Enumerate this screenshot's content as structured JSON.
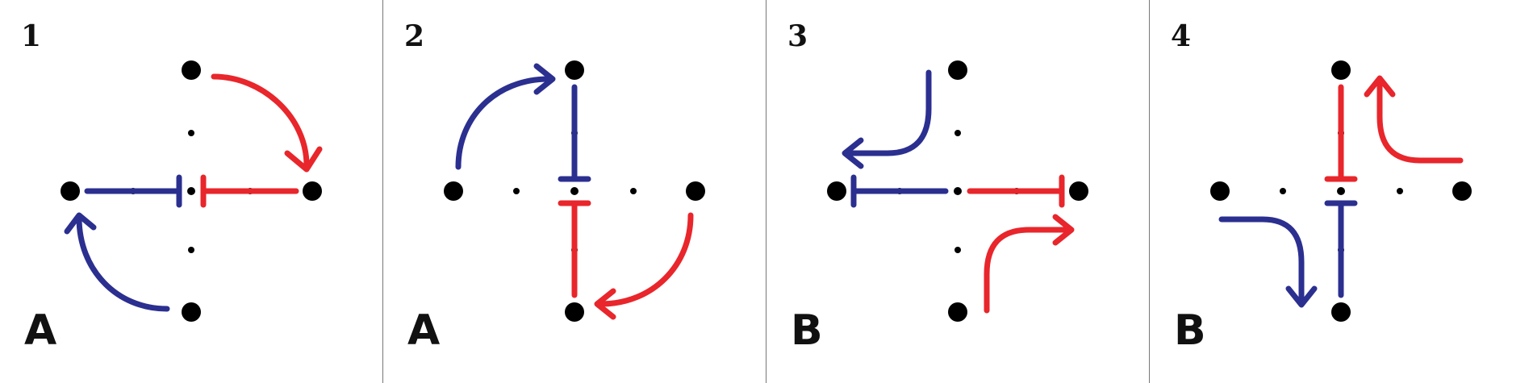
{
  "colors": {
    "blue": "#2b2f8f",
    "red": "#e8262b",
    "dot": "#000000",
    "divider": "#777777"
  },
  "panels": [
    {
      "number": "1",
      "letter": "A"
    },
    {
      "number": "2",
      "letter": "A"
    },
    {
      "number": "3",
      "letter": "B"
    },
    {
      "number": "4",
      "letter": "B"
    }
  ]
}
